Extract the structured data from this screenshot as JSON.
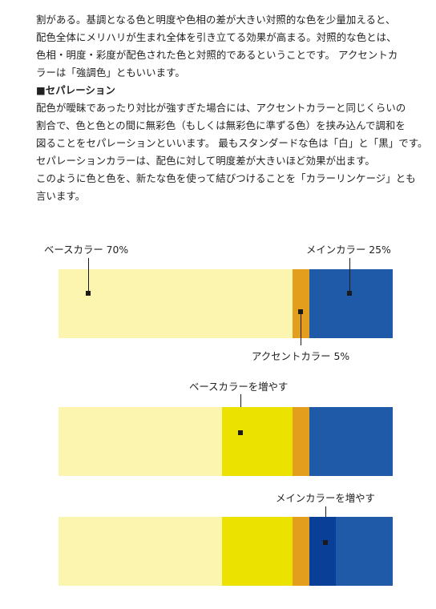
{
  "paragraph1": [
    "割がある。基調となる色と明度や色相の差が大きい対照的な色を少量加えると、",
    "配色全体にメリハリが生まれ全体を引き立てる効果が高まる。対照的な色とは、",
    "色相・明度・彩度が配色された色と対照的であるということです。 アクセントカ",
    "ラーは「強調色」ともいいます。"
  ],
  "heading": "■セパレーション",
  "paragraph2": [
    "配色が曖昧であったり対比が強すぎた場合には、アクセントカラーと同じくらいの",
    "割合で、色と色との間に無彩色（もしくは無彩色に準ずる色）を挟み込んで調和を",
    "図ることをセパレーションといいます。 最もスタンダードな色は「白」と「黒」です。",
    "セパレーションカラーは、配色に対して明度差が大きいほど効果が出ます。",
    "このように色と色を、新たな色を使って結びつけることを「カラーリンケージ」とも",
    "言います。"
  ],
  "labels": {
    "base": "ベースカラー 70%",
    "main": "メインカラー 25%",
    "accent": "アクセントカラー 5%",
    "increase_base": "ベースカラーを増やす",
    "increase_main": "メインカラーを増やす"
  },
  "colors": {
    "base": "#fbf5b0",
    "base_increase": "#ece200",
    "accent": "#e39e1e",
    "main": "#1f5aa8",
    "main_increase": "#093f96"
  },
  "bars": [
    {
      "segments": [
        {
          "name": "base",
          "share": 70,
          "color": "#fbf5b0"
        },
        {
          "name": "accent",
          "share": 5,
          "color": "#e39e1e"
        },
        {
          "name": "main",
          "share": 25,
          "color": "#1f5aa8"
        }
      ]
    },
    {
      "segments": [
        {
          "name": "base",
          "share": 49,
          "color": "#fbf5b0"
        },
        {
          "name": "base-increase",
          "share": 21,
          "color": "#ece200"
        },
        {
          "name": "accent",
          "share": 5,
          "color": "#e39e1e"
        },
        {
          "name": "main",
          "share": 25,
          "color": "#1f5aa8"
        }
      ]
    },
    {
      "segments": [
        {
          "name": "base",
          "share": 49,
          "color": "#fbf5b0"
        },
        {
          "name": "base-increase",
          "share": 21,
          "color": "#ece200"
        },
        {
          "name": "accent",
          "share": 5,
          "color": "#e39e1e"
        },
        {
          "name": "main-increase",
          "share": 8,
          "color": "#093f96"
        },
        {
          "name": "main",
          "share": 17,
          "color": "#1f5aa8"
        }
      ]
    }
  ]
}
